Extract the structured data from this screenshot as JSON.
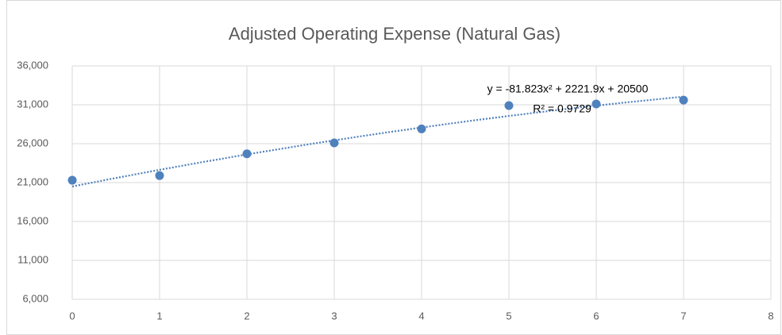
{
  "chart_data": {
    "type": "scatter",
    "title": "Adjusted Operating Expense (Natural Gas)",
    "x": [
      0,
      1,
      2,
      3,
      4,
      5,
      6,
      7
    ],
    "series": [
      {
        "color": "#4f81bd",
        "values": [
          21300,
          21900,
          24700,
          26100,
          27900,
          30900,
          31100,
          31600
        ]
      }
    ],
    "xlim": [
      0,
      8
    ],
    "xticks": [
      0,
      1,
      2,
      3,
      4,
      5,
      6,
      7,
      8
    ],
    "ylim": [
      6000,
      36000
    ],
    "yticks": [
      {
        "value": 6000,
        "label": "6,000"
      },
      {
        "value": 11000,
        "label": "11,000"
      },
      {
        "value": 16000,
        "label": "16,000"
      },
      {
        "value": 21000,
        "label": "21,000"
      },
      {
        "value": 26000,
        "label": "26,000"
      },
      {
        "value": 31000,
        "label": "31,000"
      },
      {
        "value": 36000,
        "label": "36,000"
      }
    ],
    "grid": true,
    "trendline": {
      "type": "polynomial",
      "coefficients": [
        -81.823,
        2221.9,
        20500
      ],
      "equation": "y = -81.823x² + 2221.9x + 20500",
      "r_squared": "R² = 0.9729"
    }
  }
}
